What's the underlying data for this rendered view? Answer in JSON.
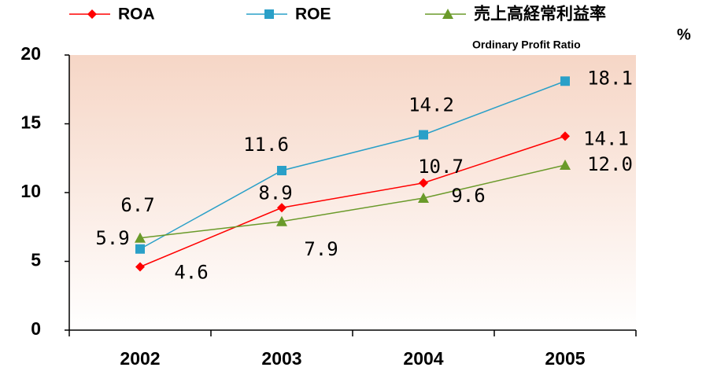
{
  "chart_data": {
    "type": "line",
    "categories": [
      "2002",
      "2003",
      "2004",
      "2005"
    ],
    "series": [
      {
        "name": "ROA",
        "color": "#ff0000",
        "marker": "diamond",
        "values": [
          4.6,
          8.9,
          10.7,
          14.1
        ],
        "value_labels": [
          "4.6",
          "8.9",
          "10.7",
          "14.1"
        ]
      },
      {
        "name": "ROE",
        "color": "#2aa0c8",
        "marker": "square",
        "values": [
          5.9,
          11.6,
          14.2,
          18.1
        ],
        "value_labels": [
          "5.9",
          "11.6",
          "14.2",
          "18.1"
        ]
      },
      {
        "name": "売上高経常利益率",
        "color": "#6a9a2a",
        "marker": "triangle",
        "values": [
          6.7,
          7.9,
          9.6,
          12.0
        ],
        "value_labels": [
          "6.7",
          "7.9",
          "9.6",
          "12.0"
        ]
      }
    ],
    "legend_note": "Ordinary Profit Ratio",
    "y_label": "%",
    "ylim": [
      0,
      20
    ],
    "yticks": [
      0,
      5,
      10,
      15,
      20
    ],
    "grid": false,
    "legend": "top"
  }
}
